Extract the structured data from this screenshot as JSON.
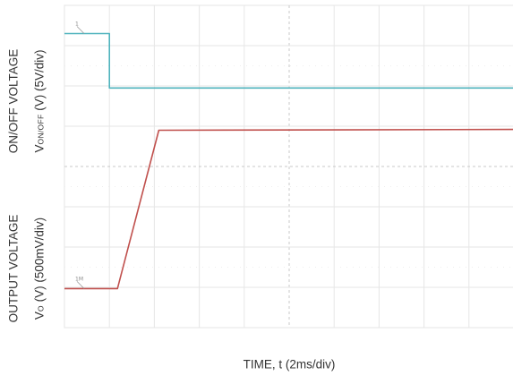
{
  "chart_data": {
    "type": "line",
    "xlabel": "TIME, t (2ms/div)",
    "ylabels": {
      "on_off_title": "ON/OFF VOLTAGE",
      "on_off_sym": "V",
      "on_off_sub": "ON/OFF",
      "on_off_unit": " (V) (5V/div)",
      "output_title": "OUTPUT VOLTAGE",
      "output_sym": "V",
      "output_sub": "O",
      "output_unit": " (V) (500mV/div)"
    },
    "grid": {
      "x_divisions": 10,
      "y_divisions": 8,
      "dashed_center": true
    },
    "x_range_div": [
      0,
      10
    ],
    "y_range_div": [
      0,
      8
    ],
    "series": [
      {
        "color": "#4fb3bd",
        "points": [
          [
            0,
            7.3
          ],
          [
            1.0,
            7.3
          ],
          [
            1.0,
            5.95
          ],
          [
            10,
            5.95
          ]
        ],
        "marker_label": "1"
      },
      {
        "color": "#c0504d",
        "points": [
          [
            0,
            0.97
          ],
          [
            1.18,
            0.97
          ],
          [
            2.1,
            4.9
          ],
          [
            10,
            4.92
          ]
        ],
        "marker_label": "1M"
      }
    ]
  }
}
